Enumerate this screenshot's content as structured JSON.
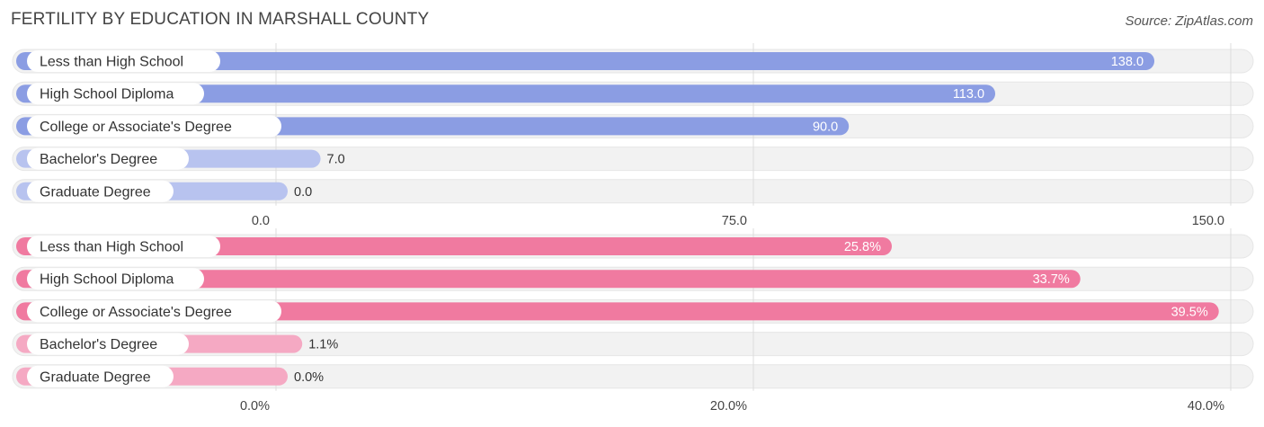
{
  "title": "FERTILITY BY EDUCATION IN MARSHALL COUNTY",
  "source": "Source: ZipAtlas.com",
  "chart_data": [
    {
      "type": "bar",
      "orientation": "horizontal",
      "categories": [
        "Less than High School",
        "High School Diploma",
        "College or Associate's Degree",
        "Bachelor's Degree",
        "Graduate Degree"
      ],
      "values": [
        138.0,
        113.0,
        90.0,
        7.0,
        0.0
      ],
      "value_labels": [
        "138.0",
        "113.0",
        "90.0",
        "7.0",
        "0.0"
      ],
      "xlim": [
        0,
        150
      ],
      "ticks": [
        0,
        75,
        150
      ],
      "tick_labels": [
        "0.0",
        "75.0",
        "150.0"
      ],
      "bar_color_strong": "#8b9de3",
      "bar_color_light": "#b8c3ef",
      "grid": true
    },
    {
      "type": "bar",
      "orientation": "horizontal",
      "categories": [
        "Less than High School",
        "High School Diploma",
        "College or Associate's Degree",
        "Bachelor's Degree",
        "Graduate Degree"
      ],
      "values": [
        25.8,
        33.7,
        39.5,
        1.1,
        0.0
      ],
      "value_labels": [
        "25.8%",
        "33.7%",
        "39.5%",
        "1.1%",
        "0.0%"
      ],
      "xlim": [
        0,
        40
      ],
      "ticks": [
        0,
        20,
        40
      ],
      "tick_labels": [
        "0.0%",
        "20.0%",
        "40.0%"
      ],
      "bar_color_strong": "#f07aa0",
      "bar_color_light": "#f5a9c3",
      "grid": true
    }
  ]
}
